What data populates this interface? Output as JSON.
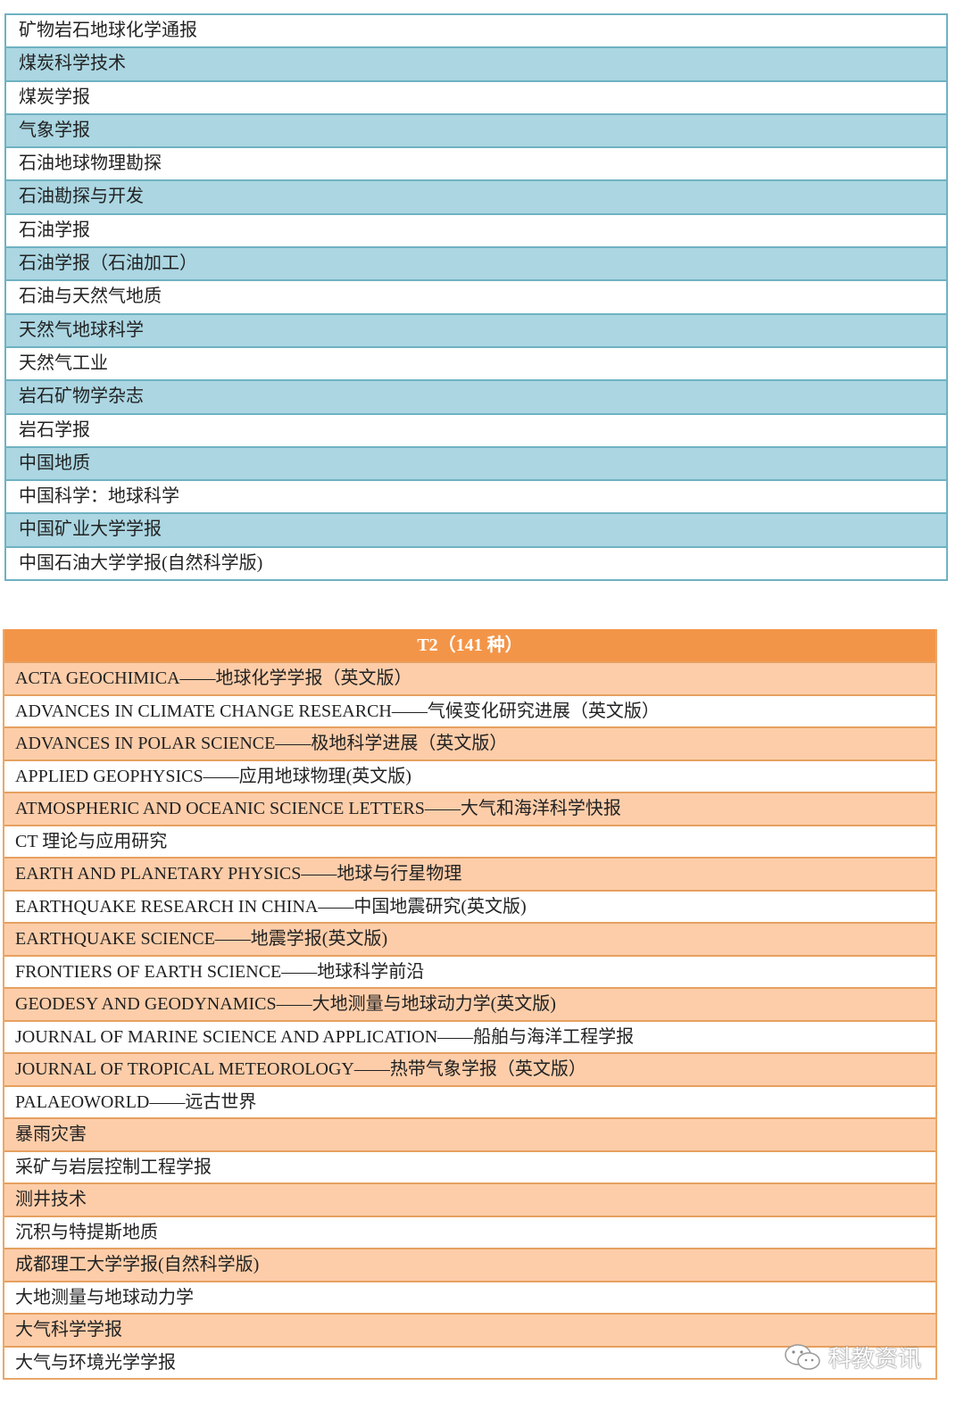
{
  "table1": {
    "rows": [
      "矿物岩石地球化学通报",
      "煤炭科学技术",
      "煤炭学报",
      "气象学报",
      "石油地球物理勘探",
      "石油勘探与开发",
      "石油学报",
      "石油学报（石油加工）",
      "石油与天然气地质",
      "天然气地球科学",
      "天然气工业",
      "岩石矿物学杂志",
      "岩石学报",
      "中国地质",
      "中国科学：地球科学",
      "中国矿业大学学报",
      "中国石油大学学报(自然科学版)"
    ]
  },
  "table2": {
    "header": "T2（141 种）",
    "rows": [
      "ACTA GEOCHIMICA——地球化学学报（英文版）",
      "ADVANCES IN CLIMATE CHANGE RESEARCH——气候变化研究进展（英文版）",
      "ADVANCES IN POLAR SCIENCE——极地科学进展（英文版）",
      "APPLIED GEOPHYSICS——应用地球物理(英文版)",
      "ATMOSPHERIC AND OCEANIC SCIENCE LETTERS——大气和海洋科学快报",
      "CT 理论与应用研究",
      "EARTH AND PLANETARY PHYSICS——地球与行星物理",
      "EARTHQUAKE RESEARCH IN CHINA——中国地震研究(英文版)",
      "EARTHQUAKE SCIENCE——地震学报(英文版)",
      "FRONTIERS OF EARTH SCIENCE——地球科学前沿",
      "GEODESY AND GEODYNAMICS——大地测量与地球动力学(英文版)",
      "JOURNAL OF MARINE SCIENCE AND APPLICATION——船舶与海洋工程学报",
      "JOURNAL OF TROPICAL METEOROLOGY——热带气象学报（英文版）",
      "PALAEOWORLD——远古世界",
      "暴雨灾害",
      "采矿与岩层控制工程学报",
      "测井技术",
      "沉积与特提斯地质",
      "成都理工大学学报(自然科学版)",
      "大地测量与地球动力学",
      "大气科学学报",
      "大气与环境光学学报"
    ]
  },
  "watermark": {
    "text": "科教资讯",
    "icon": "wechat-icon"
  },
  "colors": {
    "teal_border": "#6fb2c2",
    "teal_fill": "#abd6e2",
    "orange_header": "#f39548",
    "orange_fill": "#fdcda9"
  }
}
